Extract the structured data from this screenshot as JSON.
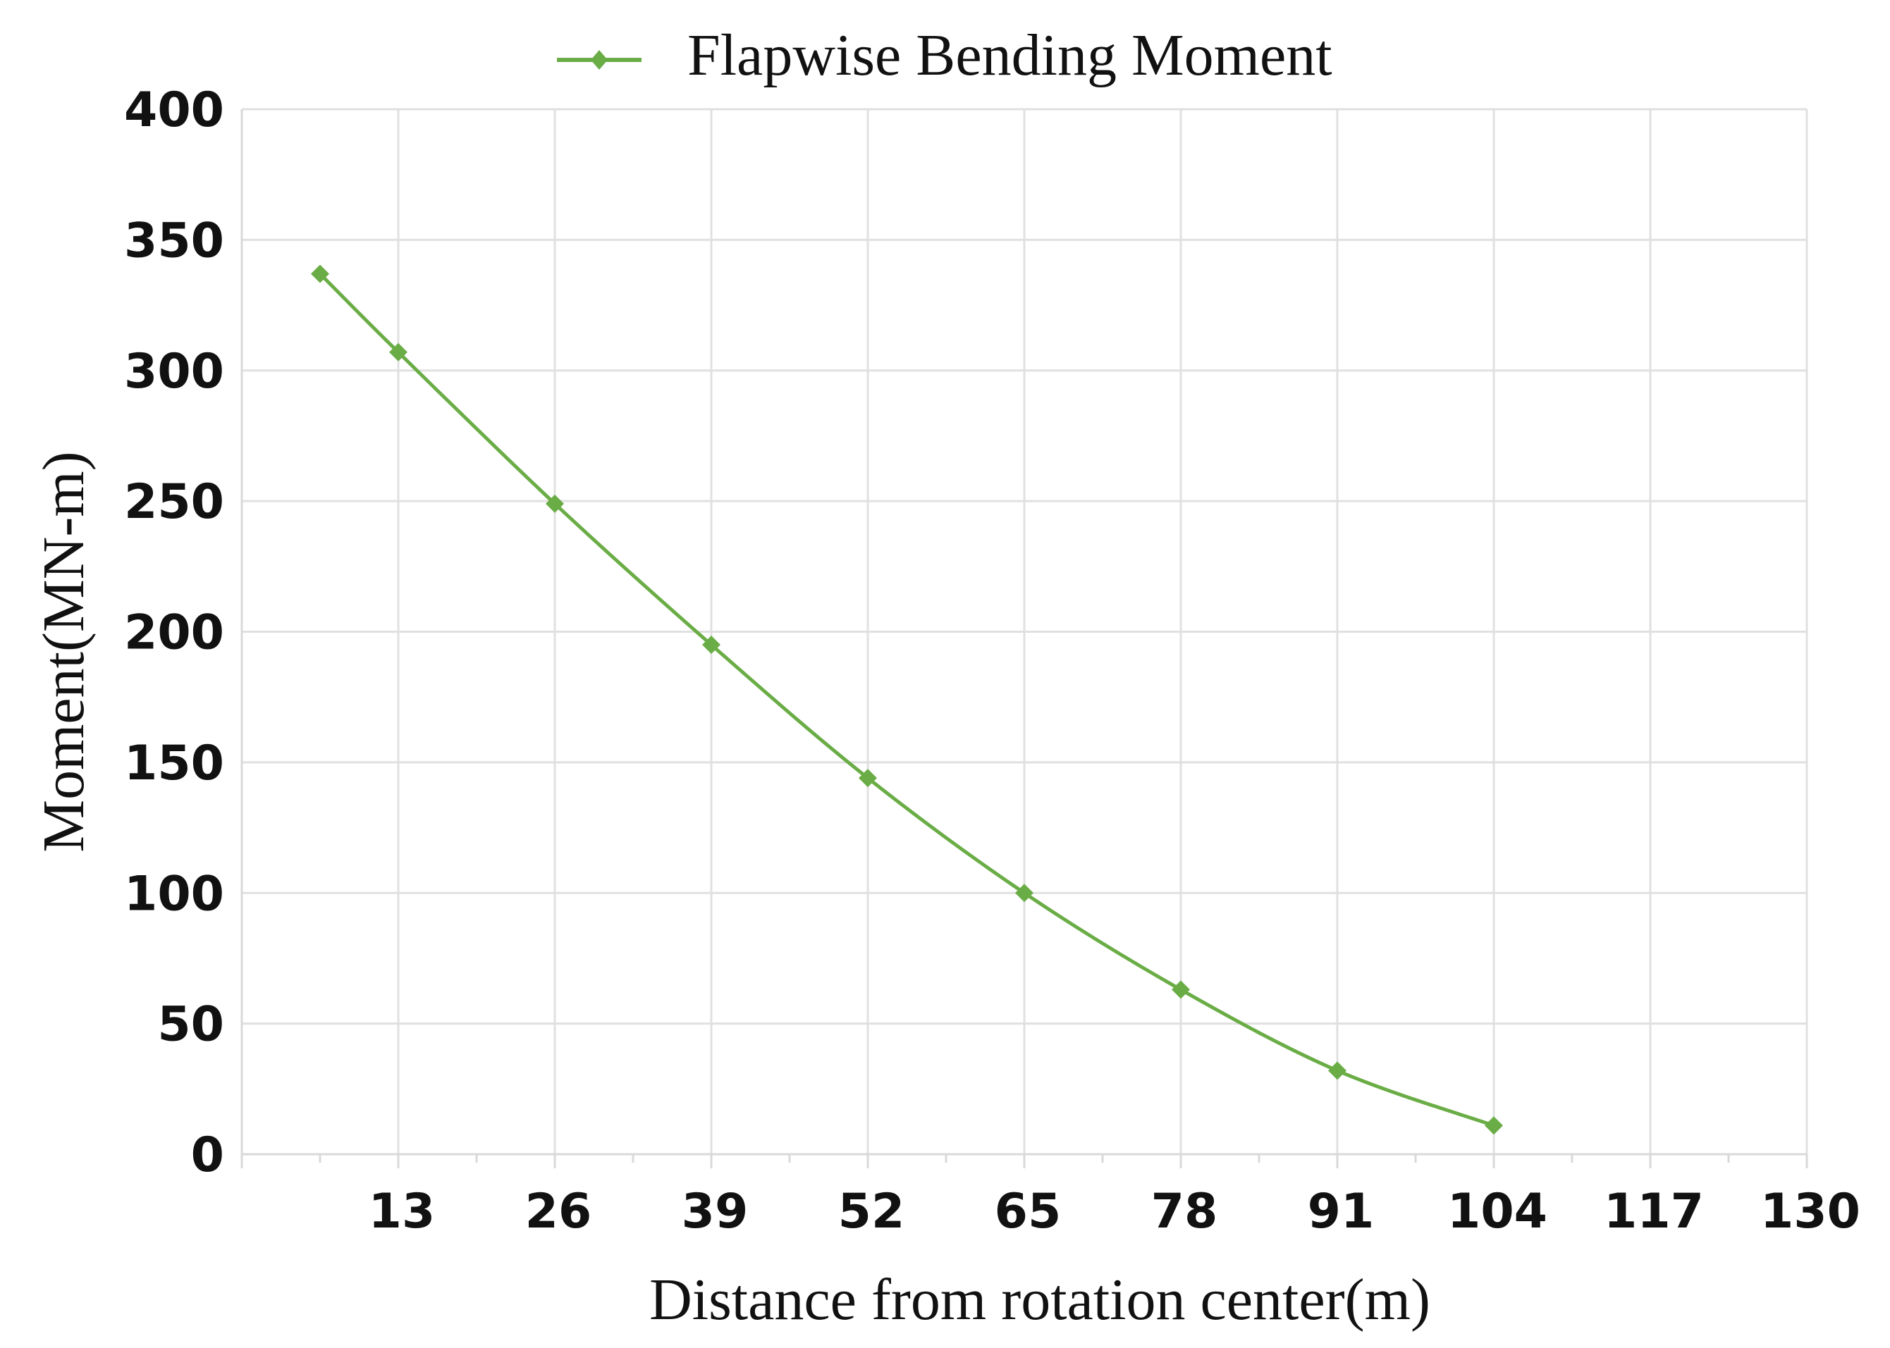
{
  "chart_data": {
    "type": "line",
    "title": "",
    "xlabel": "Distance from rotation center(m)",
    "ylabel": "Moment(MN-m)",
    "xlim": [
      0,
      130
    ],
    "ylim": [
      0,
      400
    ],
    "xticks": [
      13,
      26,
      39,
      52,
      65,
      78,
      91,
      104,
      117,
      130
    ],
    "yticks": [
      0,
      50,
      100,
      150,
      200,
      250,
      300,
      350,
      400
    ],
    "grid": true,
    "legend": "top-center",
    "series": [
      {
        "name": "Flapwise Bending Moment",
        "color": "#6aad46",
        "marker": "diamond",
        "x": [
          6.5,
          13,
          26,
          39,
          52,
          65,
          78,
          91,
          104
        ],
        "values": [
          337,
          307,
          249,
          195,
          144,
          100,
          63,
          32,
          11
        ]
      }
    ]
  }
}
